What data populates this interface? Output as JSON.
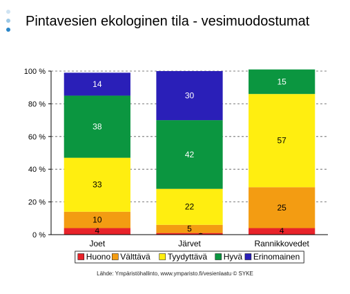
{
  "title": "Pintavesien ekologinen tila - vesimuodostumat",
  "source": "Lähde: Ympäristöhallinto, www.ymparisto.fi/vesienlaatu    © SYKE",
  "bullet_colors": [
    "#cfe3f2",
    "#9cc8e6",
    "#2a86c8"
  ],
  "chart_data": {
    "type": "bar",
    "stacked": true,
    "categories": [
      "Joet",
      "Järvet",
      "Rannikkovedet"
    ],
    "ylim": [
      0,
      100
    ],
    "yticks": [
      0,
      20,
      40,
      60,
      80,
      100
    ],
    "ytick_labels": [
      "0 %",
      "20 %",
      "40 %",
      "60 %",
      "80 %",
      "100 %"
    ],
    "grid": true,
    "legend_position": "bottom",
    "series": [
      {
        "name": "Huono",
        "color": "#e8232a",
        "values": [
          4,
          1,
          4
        ],
        "labels": [
          "4",
          "1",
          "4"
        ]
      },
      {
        "name": "Välttävä",
        "color": "#f39c12",
        "values": [
          10,
          5,
          25
        ],
        "labels": [
          "10",
          "5",
          "25"
        ]
      },
      {
        "name": "Tyydyttävä",
        "color": "#ffee10",
        "values": [
          33,
          22,
          57
        ],
        "labels": [
          "33",
          "22",
          "57"
        ]
      },
      {
        "name": "Hyvä",
        "color": "#0b9640",
        "values": [
          38,
          42,
          15
        ],
        "labels": [
          "38",
          "42",
          "15"
        ]
      },
      {
        "name": "Erinomainen",
        "color": "#2a1fb8",
        "values": [
          14,
          30,
          0
        ],
        "labels": [
          "14",
          "30",
          ""
        ]
      }
    ]
  }
}
